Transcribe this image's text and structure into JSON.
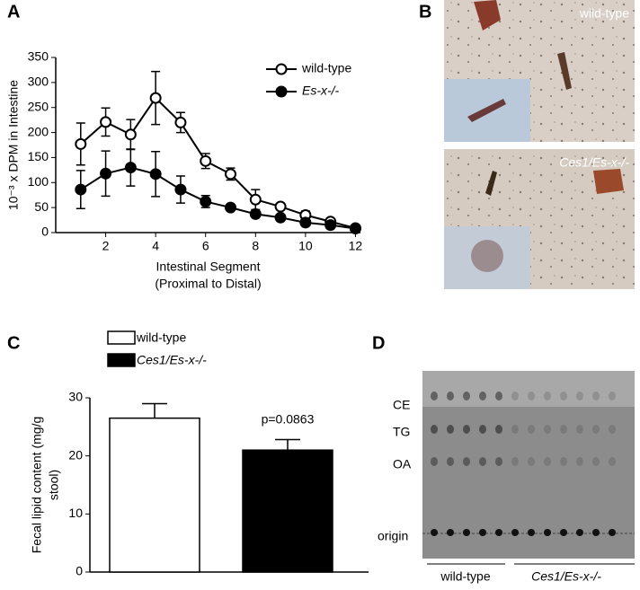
{
  "panel_labels": [
    "A",
    "B",
    "C",
    "D"
  ],
  "chart_data": [
    {
      "type": "line",
      "ylabel": "10⁻³ x DPM in Intestine",
      "xlabel": [
        "Intestinal Segment",
        "(Proximal to Distal)"
      ],
      "x": [
        1,
        2,
        3,
        4,
        5,
        6,
        7,
        8,
        9,
        10,
        11,
        12
      ],
      "series": [
        {
          "name": "wild-type",
          "color": "#ffffff",
          "values": [
            177,
            221,
            196,
            269,
            220,
            143,
            117,
            66,
            52,
            35,
            22,
            9
          ],
          "errors": [
            42,
            28,
            30,
            53,
            20,
            15,
            12,
            20,
            5,
            8,
            5,
            3
          ]
        },
        {
          "name": "Es-x-/-",
          "color": "#000000",
          "values": [
            86,
            118,
            130,
            117,
            86,
            62,
            50,
            37,
            30,
            20,
            15,
            8
          ],
          "errors": [
            38,
            45,
            37,
            45,
            27,
            12,
            5,
            5,
            5,
            5,
            5,
            3
          ]
        }
      ],
      "xlim": [
        0,
        12.2
      ],
      "xticks": [
        2,
        4,
        6,
        8,
        10,
        12
      ],
      "ylim": [
        0,
        350
      ],
      "yticks": [
        0,
        50,
        100,
        150,
        200,
        250,
        300,
        350
      ]
    },
    {
      "type": "bar",
      "ylabel": [
        "Fecal lipid content (mg/g",
        "stool)"
      ],
      "categories": [
        "wild-type",
        "Ces1/Es-x-/-"
      ],
      "values": [
        26.5,
        21
      ],
      "errors": [
        2.5,
        1.8
      ],
      "colors": [
        "#ffffff",
        "#000000"
      ],
      "annotation": "p=0.0863",
      "ylim": [
        0,
        30
      ],
      "yticks": [
        0,
        10,
        20,
        30
      ]
    }
  ],
  "micrographs": [
    "wild-type",
    "Ces1/Es-x-/-"
  ],
  "tlc": {
    "bands": [
      "CE",
      "TG",
      "OA",
      "origin"
    ],
    "groups": [
      "wild-type",
      "Ces1/Es-x-/-"
    ]
  }
}
